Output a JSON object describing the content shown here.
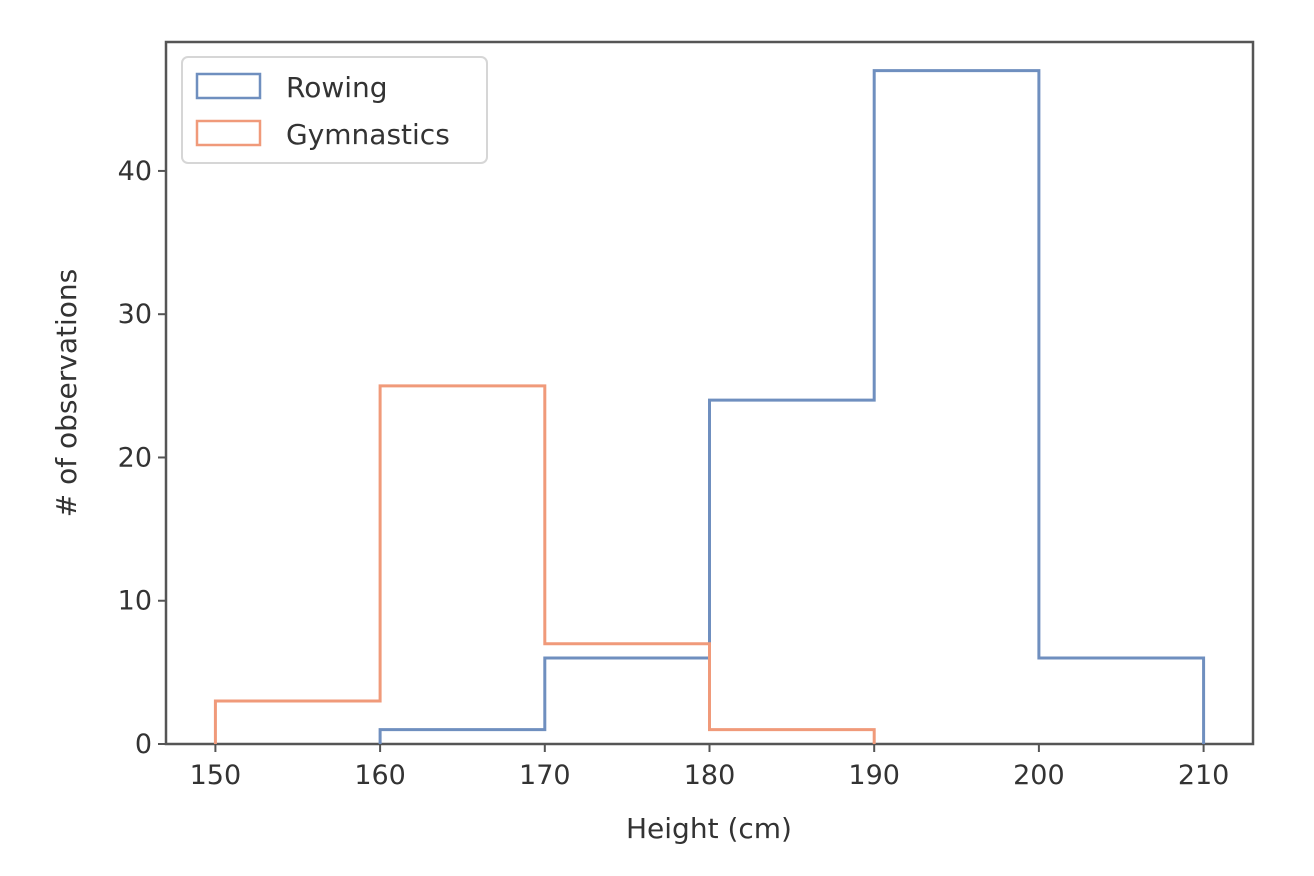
{
  "chart_data": {
    "type": "histogram",
    "title": "",
    "xlabel": "Height (cm)",
    "ylabel": "# of observations",
    "xlim": [
      147,
      213
    ],
    "ylim": [
      0,
      49
    ],
    "xticks": [
      150,
      160,
      170,
      180,
      190,
      200,
      210
    ],
    "yticks": [
      0,
      10,
      20,
      30,
      40
    ],
    "grid": false,
    "legend_position": "top-left",
    "series": [
      {
        "name": "Rowing",
        "color": "#6f8fbf",
        "bin_edges": [
          160,
          170,
          180,
          190,
          200,
          210
        ],
        "counts": [
          1,
          6,
          24,
          47,
          6
        ]
      },
      {
        "name": "Gymnastics",
        "color": "#f09a7a",
        "bin_edges": [
          150,
          160,
          170,
          180,
          190
        ],
        "counts": [
          3,
          25,
          7,
          1
        ]
      }
    ]
  }
}
